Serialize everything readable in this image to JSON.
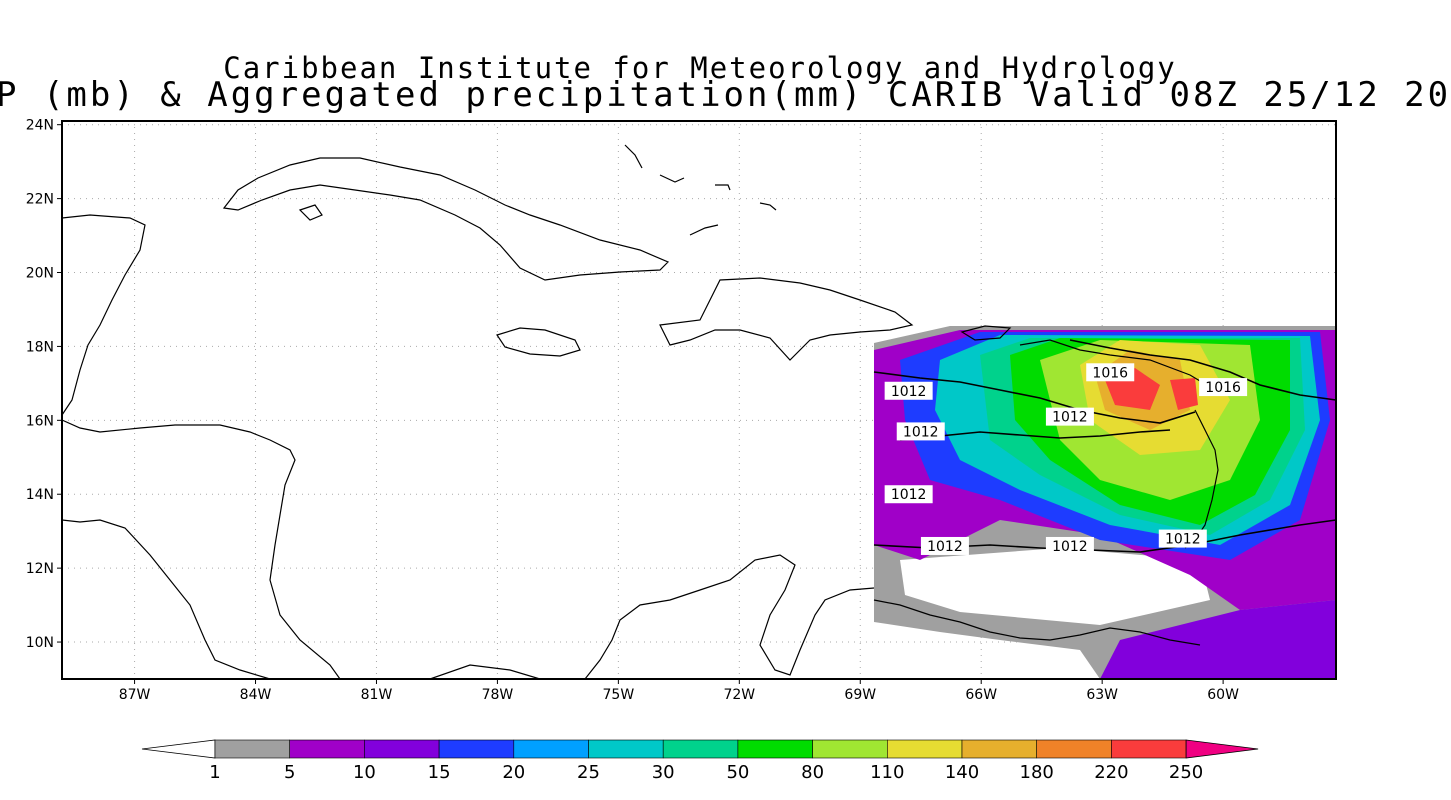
{
  "title": {
    "line1": "Caribbean Institute for Meteorology and Hydrology",
    "line2": "P (mb) & Aggregated precipitation(mm) CARIB Valid 08Z 25/12 20"
  },
  "map": {
    "lon_range": [
      -88.8,
      -57.2
    ],
    "lat_range": [
      9.0,
      24.1
    ],
    "lon_ticks": [
      {
        "value": -87,
        "label": "87W"
      },
      {
        "value": -84,
        "label": "84W"
      },
      {
        "value": -81,
        "label": "81W"
      },
      {
        "value": -78,
        "label": "78W"
      },
      {
        "value": -75,
        "label": "75W"
      },
      {
        "value": -72,
        "label": "72W"
      },
      {
        "value": -69,
        "label": "69W"
      },
      {
        "value": -66,
        "label": "66W"
      },
      {
        "value": -63,
        "label": "63W"
      },
      {
        "value": -60,
        "label": "60W"
      }
    ],
    "lat_ticks": [
      {
        "value": 10,
        "label": "10N"
      },
      {
        "value": 12,
        "label": "12N"
      },
      {
        "value": 14,
        "label": "14N"
      },
      {
        "value": 16,
        "label": "16N"
      },
      {
        "value": 18,
        "label": "18N"
      },
      {
        "value": 20,
        "label": "20N"
      },
      {
        "value": 22,
        "label": "22N"
      },
      {
        "value": 24,
        "label": "24N"
      }
    ],
    "grid": "dotted",
    "isobars": [
      {
        "label": "1016",
        "lon": -62.8,
        "lat": 17.3
      },
      {
        "label": "1016",
        "lon": -60.0,
        "lat": 16.9
      },
      {
        "label": "1012",
        "lon": -67.8,
        "lat": 16.8
      },
      {
        "label": "1012",
        "lon": -63.8,
        "lat": 16.1
      },
      {
        "label": "1012",
        "lon": -67.5,
        "lat": 15.7
      },
      {
        "label": "1012",
        "lon": -67.8,
        "lat": 14.0
      },
      {
        "label": "1012",
        "lon": -66.9,
        "lat": 12.6
      },
      {
        "label": "1012",
        "lon": -63.8,
        "lat": 12.6
      },
      {
        "label": "1012",
        "lon": -61.0,
        "lat": 12.8
      }
    ]
  },
  "colorbar": {
    "labels": [
      "1",
      "5",
      "10",
      "15",
      "20",
      "25",
      "30",
      "50",
      "80",
      "110",
      "140",
      "180",
      "220",
      "250"
    ],
    "colors": [
      "#ffffff",
      "#a0a0a0",
      "#a000c8",
      "#8200dc",
      "#1e3cff",
      "#00a0ff",
      "#00c8c8",
      "#00d28c",
      "#00dc00",
      "#a0e632",
      "#e6dc32",
      "#e6af2d",
      "#f08228",
      "#fa3c3c",
      "#f00082"
    ]
  }
}
